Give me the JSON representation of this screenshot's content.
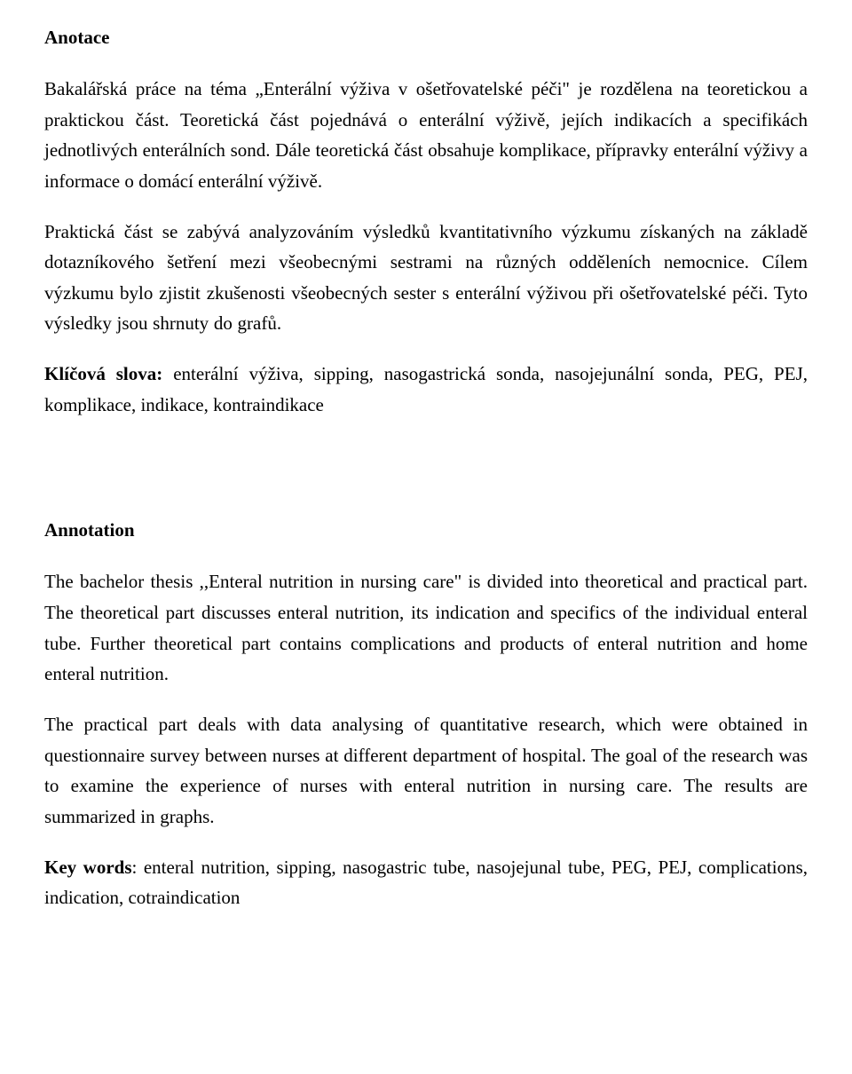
{
  "cs": {
    "heading": "Anotace",
    "p1": "Bakalářská práce na téma „Enterální výživa v ošetřovatelské péči\" je rozdělena na teoretickou a praktickou část. Teoretická část pojednává o enterální výživě, jejích indikacích a specifikách jednotlivých enterálních sond. Dále teoretická část obsahuje komplikace, přípravky enterální výživy a informace o domácí enterální výživě.",
    "p2": "Praktická část se zabývá analyzováním výsledků kvantitativního výzkumu získaných na základě dotazníkového šetření mezi všeobecnými sestrami na různých odděleních nemocnice. Cílem výzkumu bylo zjistit zkušenosti všeobecných sester s enterální výživou při ošetřovatelské péči. Tyto výsledky jsou shrnuty do grafů.",
    "kw_label": "Klíčová slova: ",
    "kw_text": "enterální výživa, sipping, nasogastrická sonda, nasojejunální sonda, PEG, PEJ, komplikace, indikace, kontraindikace"
  },
  "en": {
    "heading": "Annotation",
    "p1": "The bachelor thesis ,,Enteral nutrition in nursing care\" is divided into theoretical and practical part. The theoretical part discusses enteral nutrition, its indication and specifics of the individual enteral tube. Further theoretical part contains complications and products of enteral nutrition and home enteral nutrition.",
    "p2": "The practical part deals with data analysing of quantitative research, which were obtained in questionnaire survey between nurses at different department of hospital. The goal of the research was to examine the experience of nurses with enteral nutrition in nursing care. The results are summarized in graphs.",
    "kw_label": "Key words",
    "kw_text": ": enteral nutrition, sipping, nasogastric tube, nasojejunal tube, PEG, PEJ, complications, indication, cotraindication"
  }
}
